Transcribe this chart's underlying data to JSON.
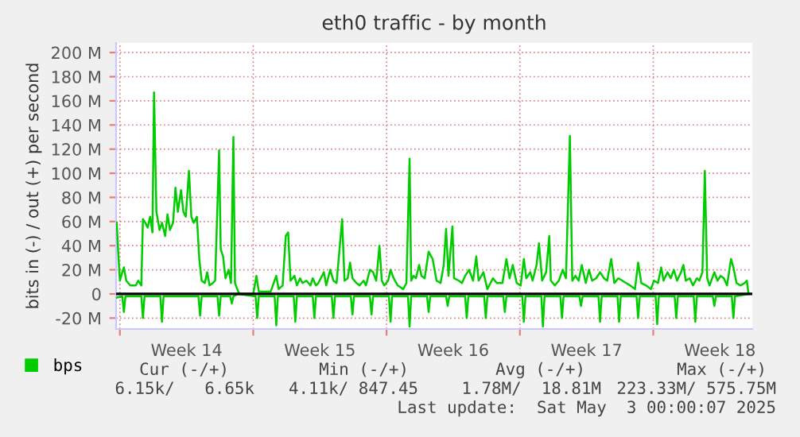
{
  "chart_data": {
    "type": "line",
    "title": "eth0 traffic - by month",
    "ylabel": "bits in (-) / out (+) per second",
    "xlim": [
      "2025-03-30T19:12",
      "2025-05-03T04:48"
    ],
    "xticks": [
      {
        "value": "2025-03-31",
        "label": null
      },
      {
        "value": "2025-04-03T12:00",
        "label": "Week 14"
      },
      {
        "value": "2025-04-07",
        "label": null
      },
      {
        "value": "2025-04-10T12:00",
        "label": "Week 15"
      },
      {
        "value": "2025-04-14",
        "label": null
      },
      {
        "value": "2025-04-17T12:00",
        "label": "Week 16"
      },
      {
        "value": "2025-04-21",
        "label": null
      },
      {
        "value": "2025-04-24T12:00",
        "label": "Week 17"
      },
      {
        "value": "2025-04-28",
        "label": null
      },
      {
        "value": "2025-05-01T12:00",
        "label": "Week 18"
      }
    ],
    "ylim": [
      -29,
      208
    ],
    "yticks": [
      {
        "value": -20,
        "label": "-20 M"
      },
      {
        "value": 0,
        "label": "0"
      },
      {
        "value": 20,
        "label": "20 M"
      },
      {
        "value": 40,
        "label": "40 M"
      },
      {
        "value": 60,
        "label": "60 M"
      },
      {
        "value": 80,
        "label": "80 M"
      },
      {
        "value": 100,
        "label": "100 M"
      },
      {
        "value": 120,
        "label": "120 M"
      },
      {
        "value": 140,
        "label": "140 M"
      },
      {
        "value": 160,
        "label": "160 M"
      },
      {
        "value": 180,
        "label": "180 M"
      },
      {
        "value": 200,
        "label": "200 M"
      }
    ],
    "grid": true,
    "legend": "bottom left",
    "marker": "none",
    "line_style": "solid",
    "ref_lines": [
      {
        "axis": "y",
        "value": 0,
        "label": null,
        "color": "#000000"
      }
    ],
    "series": [
      {
        "name": "bps",
        "color": "#00cc00",
        "x": [
          "2025-03-30T20:00",
          "2025-03-30T22:00",
          "2025-03-31T00:00",
          "2025-03-31T03:00",
          "2025-03-31T05:00",
          "2025-03-31T08:00",
          "2025-03-31T13:00",
          "2025-03-31T20:00",
          "2025-03-31T23:00",
          "2025-04-01T03:00",
          "2025-04-01T05:00",
          "2025-04-01T08:00",
          "2025-04-01T11:00",
          "2025-04-01T14:00",
          "2025-04-01T17:00",
          "2025-04-01T19:00",
          "2025-04-01T22:00",
          "2025-04-02T02:00",
          "2025-04-02T05:00",
          "2025-04-02T09:00",
          "2025-04-02T12:00",
          "2025-04-02T15:00",
          "2025-04-02T19:00",
          "2025-04-02T22:00",
          "2025-04-03T01:00",
          "2025-04-03T05:00",
          "2025-04-03T08:00",
          "2025-04-03T11:00",
          "2025-04-03T15:00",
          "2025-04-03T18:00",
          "2025-04-03T21:00",
          "2025-04-04T01:00",
          "2025-04-04T04:00",
          "2025-04-04T07:00",
          "2025-04-04T11:00",
          "2025-04-04T14:00",
          "2025-04-04T17:00",
          "2025-04-04T21:00",
          "2025-04-05T00:00",
          "2025-04-05T05:00",
          "2025-04-05T07:00",
          "2025-04-05T10:00",
          "2025-04-05T13:00",
          "2025-04-05T17:00",
          "2025-04-05T20:00",
          "2025-04-05T23:00",
          "2025-04-06T01:00",
          "2025-04-06T05:00",
          "2025-04-06T07:00",
          "2025-04-07T00:00",
          "2025-04-07T04:00",
          "2025-04-07T07:00",
          "2025-04-07T22:00",
          "2025-04-08T05:00",
          "2025-04-08T08:00",
          "2025-04-08T13:00",
          "2025-04-08T17:00",
          "2025-04-08T20:00",
          "2025-04-08T23:00",
          "2025-04-09T04:00",
          "2025-04-09T07:00",
          "2025-04-09T11:00",
          "2025-04-09T14:00",
          "2025-04-09T19:00",
          "2025-04-10T00:00",
          "2025-04-10T03:00",
          "2025-04-10T07:00",
          "2025-04-10T10:00",
          "2025-04-10T17:00",
          "2025-04-10T20:00",
          "2025-04-11T01:00",
          "2025-04-11T05:00",
          "2025-04-11T09:00",
          "2025-04-11T16:00",
          "2025-04-11T19:00",
          "2025-04-11T23:00",
          "2025-04-12T02:00",
          "2025-04-12T05:00",
          "2025-04-12T10:00",
          "2025-04-12T14:00",
          "2025-04-12T19:00",
          "2025-04-12T22:00",
          "2025-04-13T03:00",
          "2025-04-13T07:00",
          "2025-04-13T11:00",
          "2025-04-13T15:00",
          "2025-04-13T18:00",
          "2025-04-13T21:00",
          "2025-04-14T02:00",
          "2025-04-14T05:00",
          "2025-04-14T09:00",
          "2025-04-14T14:00",
          "2025-04-14T21:00",
          "2025-04-15T01:00",
          "2025-04-15T05:00",
          "2025-04-15T07:00",
          "2025-04-15T10:00",
          "2025-04-15T13:00",
          "2025-04-15T17:00",
          "2025-04-15T20:00",
          "2025-04-16T00:00",
          "2025-04-16T05:00",
          "2025-04-16T10:00",
          "2025-04-16T15:00",
          "2025-04-16T20:00",
          "2025-04-17T00:00",
          "2025-04-17T03:00",
          "2025-04-17T06:00",
          "2025-04-17T11:00",
          "2025-04-17T13:00",
          "2025-04-17T19:00",
          "2025-04-17T23:00",
          "2025-04-18T03:00",
          "2025-04-18T08:00",
          "2025-04-18T13:00",
          "2025-04-18T17:00",
          "2025-04-18T20:00",
          "2025-04-19T02:00",
          "2025-04-19T07:00",
          "2025-04-19T14:00",
          "2025-04-19T19:00",
          "2025-04-20T02:00",
          "2025-04-20T07:00",
          "2025-04-20T11:00",
          "2025-04-20T15:00",
          "2025-04-20T20:00",
          "2025-04-21T01:00",
          "2025-04-21T05:00",
          "2025-04-21T08:00",
          "2025-04-21T13:00",
          "2025-04-21T16:00",
          "2025-04-21T21:00",
          "2025-04-22T00:00",
          "2025-04-22T04:00",
          "2025-04-22T09:00",
          "2025-04-22T13:00",
          "2025-04-22T15:00",
          "2025-04-22T20:00",
          "2025-04-23T01:00",
          "2025-04-23T06:00",
          "2025-04-23T10:00",
          "2025-04-23T15:00",
          "2025-04-23T18:00",
          "2025-04-23T22:00",
          "2025-04-24T02:00",
          "2025-04-24T06:00",
          "2025-04-24T11:00",
          "2025-04-24T15:00",
          "2025-04-24T19:00",
          "2025-04-25T00:00",
          "2025-04-25T05:00",
          "2025-04-25T10:00",
          "2025-04-25T14:00",
          "2025-04-25T19:00",
          "2025-04-25T23:00",
          "2025-04-26T04:00",
          "2025-04-26T09:00",
          "2025-04-26T14:00",
          "2025-04-26T19:00",
          "2025-04-27T01:00",
          "2025-04-27T05:00",
          "2025-04-27T09:00",
          "2025-04-27T15:00",
          "2025-04-27T21:00",
          "2025-04-28T01:00",
          "2025-04-28T06:00",
          "2025-04-28T10:00",
          "2025-04-28T13:00",
          "2025-04-28T18:00",
          "2025-04-28T22:00",
          "2025-04-29T02:00",
          "2025-04-29T06:00",
          "2025-04-29T11:00",
          "2025-04-29T14:00",
          "2025-04-29T17:00",
          "2025-04-29T22:00",
          "2025-04-30T02:00",
          "2025-04-30T07:00",
          "2025-04-30T10:00",
          "2025-04-30T14:00",
          "2025-04-30T17:00",
          "2025-04-30T20:00",
          "2025-04-30T23:00",
          "2025-05-01T05:00",
          "2025-05-01T09:00",
          "2025-05-01T13:00",
          "2025-05-01T17:00",
          "2025-05-01T21:00",
          "2025-05-02T02:00",
          "2025-05-02T05:00",
          "2025-05-02T09:00",
          "2025-05-02T14:00",
          "2025-05-02T19:00",
          "2025-05-02T22:00",
          "2025-05-03T00:00"
        ],
        "values": [
          59,
          33,
          11,
          18,
          22,
          11,
          7,
          7,
          11,
          7,
          62,
          59,
          55,
          64,
          51,
          167,
          68,
          53,
          59,
          48,
          66,
          53,
          59,
          88,
          68,
          86,
          68,
          64,
          102,
          64,
          59,
          64,
          29,
          11,
          9,
          18,
          7,
          9,
          11,
          119,
          37,
          31,
          13,
          20,
          9,
          130,
          9,
          2,
          0,
          0,
          15,
          2,
          2,
          15,
          4,
          7,
          48,
          51,
          11,
          15,
          7,
          13,
          9,
          11,
          7,
          13,
          7,
          9,
          18,
          7,
          20,
          11,
          9,
          62,
          11,
          13,
          26,
          13,
          9,
          7,
          11,
          7,
          20,
          18,
          11,
          40,
          11,
          7,
          11,
          20,
          13,
          7,
          4,
          9,
          112,
          11,
          15,
          13,
          24,
          15,
          13,
          35,
          29,
          11,
          9,
          24,
          54,
          15,
          56,
          13,
          11,
          9,
          15,
          20,
          11,
          31,
          11,
          18,
          4,
          13,
          9,
          9,
          29,
          13,
          24,
          9,
          7,
          29,
          13,
          18,
          11,
          24,
          42,
          11,
          18,
          48,
          11,
          7,
          11,
          20,
          13,
          131,
          11,
          15,
          11,
          24,
          9,
          20,
          11,
          13,
          18,
          13,
          11,
          29,
          9,
          13,
          11,
          9,
          7,
          4,
          26,
          9,
          7,
          4,
          11,
          9,
          22,
          11,
          18,
          13,
          20,
          11,
          18,
          24,
          11,
          13,
          7,
          13,
          11,
          18,
          102,
          13,
          7,
          18,
          11,
          15,
          13,
          7,
          29,
          22,
          9,
          7,
          9,
          11,
          0
        ]
      },
      {
        "color": "#00cc00",
        "x": [
          "2025-03-30T20:00",
          "2025-03-31T03:00",
          "2025-03-31T05:00",
          "2025-03-31T07:00",
          "2025-04-01T03:00",
          "2025-04-01T05:00",
          "2025-04-01T07:00",
          "2025-04-02T03:00",
          "2025-04-02T05:00",
          "2025-04-02T07:00",
          "2025-04-04T03:00",
          "2025-04-04T05:00",
          "2025-04-04T07:00",
          "2025-04-05T03:00",
          "2025-04-05T05:00",
          "2025-04-05T07:00",
          "2025-04-05T19:00",
          "2025-04-05T21:00",
          "2025-04-05T23:00",
          "2025-04-06T05:00",
          "2025-04-07T03:00",
          "2025-04-07T05:00",
          "2025-04-07T07:00",
          "2025-04-08T03:00",
          "2025-04-08T05:00",
          "2025-04-08T07:00",
          "2025-04-09T03:00",
          "2025-04-09T05:00",
          "2025-04-09T07:00",
          "2025-04-10T03:00",
          "2025-04-10T05:00",
          "2025-04-10T07:00",
          "2025-04-11T03:00",
          "2025-04-11T05:00",
          "2025-04-11T07:00",
          "2025-04-12T03:00",
          "2025-04-12T05:00",
          "2025-04-12T07:00",
          "2025-04-13T03:00",
          "2025-04-13T05:00",
          "2025-04-13T07:00",
          "2025-04-14T03:00",
          "2025-04-14T05:00",
          "2025-04-14T07:00",
          "2025-04-15T03:00",
          "2025-04-15T05:00",
          "2025-04-15T07:00",
          "2025-04-16T03:00",
          "2025-04-16T05:00",
          "2025-04-16T07:00",
          "2025-04-17T03:00",
          "2025-04-17T05:00",
          "2025-04-17T07:00",
          "2025-04-18T03:00",
          "2025-04-18T05:00",
          "2025-04-18T07:00",
          "2025-04-19T03:00",
          "2025-04-19T05:00",
          "2025-04-19T07:00",
          "2025-04-20T03:00",
          "2025-04-20T05:00",
          "2025-04-20T07:00",
          "2025-04-21T03:00",
          "2025-04-21T05:00",
          "2025-04-21T07:00",
          "2025-04-22T03:00",
          "2025-04-22T05:00",
          "2025-04-22T07:00",
          "2025-04-23T03:00",
          "2025-04-23T05:00",
          "2025-04-23T07:00",
          "2025-04-24T03:00",
          "2025-04-24T05:00",
          "2025-04-24T07:00",
          "2025-04-25T03:00",
          "2025-04-25T05:00",
          "2025-04-25T07:00",
          "2025-04-26T03:00",
          "2025-04-26T05:00",
          "2025-04-26T07:00",
          "2025-04-27T03:00",
          "2025-04-27T05:00",
          "2025-04-27T07:00",
          "2025-04-28T03:00",
          "2025-04-28T05:00",
          "2025-04-28T07:00",
          "2025-04-29T03:00",
          "2025-04-29T05:00",
          "2025-04-29T07:00",
          "2025-04-30T03:00",
          "2025-04-30T05:00",
          "2025-04-30T07:00",
          "2025-05-01T03:00",
          "2025-05-01T05:00",
          "2025-05-01T07:00",
          "2025-05-02T03:00",
          "2025-05-02T05:00",
          "2025-05-02T07:00",
          "2025-05-03T00:00"
        ],
        "values": [
          -3,
          -2,
          -15,
          -2,
          -2,
          -20,
          -2,
          -2,
          -23,
          -2,
          -2,
          -18,
          -2,
          -2,
          -18,
          -2,
          -2,
          -8,
          -2,
          0,
          -2,
          -20,
          -2,
          -2,
          -26,
          -2,
          -2,
          -23,
          -2,
          -2,
          -20,
          -2,
          -2,
          -20,
          -2,
          -2,
          -17,
          -2,
          -2,
          -17,
          -2,
          -2,
          -23,
          -2,
          -2,
          -27,
          -2,
          -2,
          -15,
          -2,
          -2,
          -10,
          -2,
          -2,
          -20,
          -2,
          -2,
          -20,
          -2,
          -2,
          -15,
          -2,
          -2,
          -23,
          -2,
          -2,
          -27,
          -2,
          -2,
          -20,
          -2,
          -2,
          -10,
          -2,
          -2,
          -23,
          -2,
          -2,
          -23,
          -2,
          -2,
          -20,
          -2,
          -2,
          -25,
          -2,
          -2,
          -20,
          -2,
          -2,
          -23,
          -2,
          -2,
          -10,
          -2,
          -2,
          -20,
          -2,
          0
        ]
      }
    ],
    "annotations": [
      "Cur (-/+)",
      "Min (-/+)",
      "Avg (-/+)",
      "Max (-/+)",
      "6.15k/   6.65k",
      "4.11k/ 847.45",
      "1.78M/  18.81M",
      "223.33M/ 575.75M",
      "Last update:  Sat May  3 00:00:07 2025"
    ]
  }
}
